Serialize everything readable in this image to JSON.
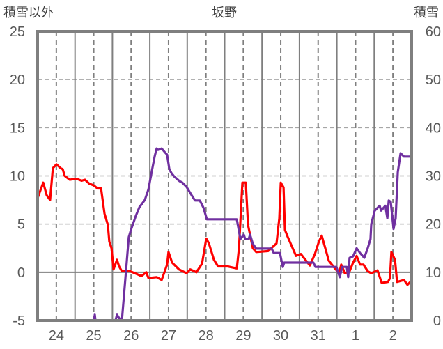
{
  "chart_data": {
    "type": "line",
    "title": "坂野",
    "ylabel_left": "積雪以外",
    "ylabel_right": "積雪",
    "x_unit": "hours from day 24 00:00",
    "xlim": [
      0,
      240
    ],
    "x_tick_labels": [
      "24",
      "25",
      "26",
      "27",
      "28",
      "29",
      "30",
      "31",
      "1",
      "2"
    ],
    "ylim_left": [
      -5,
      25
    ],
    "yticks_left": [
      -5,
      0,
      5,
      10,
      15,
      20,
      25
    ],
    "ylim_right": [
      0,
      60
    ],
    "yticks_right": [
      0,
      10,
      20,
      30,
      40,
      50,
      60
    ],
    "grid": true,
    "series": [
      {
        "name": "積雪以外",
        "axis": "left",
        "color": "#ff0000",
        "x": [
          0,
          3.6,
          5.8,
          8.0,
          9.8,
          12.1,
          14.7,
          16.1,
          17.4,
          20.6,
          25.0,
          28.2,
          30.4,
          33.1,
          36.2,
          38.4,
          40.7,
          42.9,
          45.1,
          46.0,
          47.4,
          48.7,
          50.9,
          52.3,
          54.1,
          59.4,
          63.9,
          66.6,
          69.7,
          71.1,
          76.4,
          79.6,
          83.1,
          84.0,
          86.3,
          90.7,
          95.6,
          97.9,
          101.9,
          105.5,
          108.2,
          109.9,
          113.1,
          115.8,
          122.0,
          127.8,
          129.2,
          131.4,
          133.6,
          135.0,
          138.1,
          140.3,
          147.9,
          153.3,
          155.1,
          156.0,
          157.8,
          158.7,
          160.4,
          165.8,
          168.9,
          174.7,
          177.9,
          180.5,
          182.3,
          184.6,
          186.8,
          191.3,
          193.5,
          194.8,
          197.1,
          200.2,
          202.4,
          204.7,
          206.9,
          209.1,
          211.8,
          214.1,
          218.1,
          220.8,
          224.8,
          226.1,
          227.0,
          229.3,
          230.6,
          235.1,
          237.3,
          239.1
        ],
        "y": [
          7.7,
          9.3,
          8.0,
          7.5,
          10.8,
          11.2,
          10.8,
          10.7,
          10.0,
          9.6,
          9.7,
          9.5,
          9.6,
          9.2,
          9.0,
          8.7,
          8.7,
          6.1,
          4.9,
          3.2,
          2.5,
          0.3,
          1.3,
          0.6,
          0.1,
          0.1,
          -0.2,
          -0.4,
          0,
          -0.6,
          -0.5,
          -0.8,
          0.8,
          2.1,
          1.0,
          0.3,
          -0.1,
          0.3,
          0,
          0.9,
          3.5,
          3.0,
          1.3,
          0.6,
          0.6,
          0.4,
          2.5,
          9.3,
          9.3,
          4.9,
          2.5,
          2.1,
          2.2,
          3.0,
          5.6,
          9.3,
          8.8,
          4.4,
          3.7,
          1.7,
          1.9,
          0.7,
          1.9,
          3.2,
          3.8,
          2.5,
          1.2,
          0.3,
          -0.1,
          0.8,
          -0.1,
          0.1,
          1.0,
          1.7,
          0.8,
          0.8,
          0.1,
          -0.1,
          0.2,
          -1.1,
          -1.0,
          -0.6,
          2.1,
          1.3,
          -1.0,
          -0.8,
          -1.3,
          -1.0
        ]
      },
      {
        "name": "積雪",
        "axis": "right",
        "color": "#7030a0",
        "x": [
          0,
          36.2,
          36.7,
          37.1,
          50.0,
          50.9,
          52.7,
          54.1,
          56.3,
          58.5,
          59.9,
          63.0,
          65.3,
          68.8,
          71.1,
          73.3,
          75.1,
          76.4,
          77.3,
          79.6,
          81.4,
          83.1,
          84.5,
          85.8,
          87.6,
          91.1,
          92.9,
          95.6,
          98.8,
          101.0,
          104.1,
          106.4,
          108.6,
          127.8,
          130.1,
          132.3,
          133.2,
          135.4,
          136.3,
          138.1,
          140.3,
          150.2,
          151.5,
          155.5,
          157.3,
          158.2,
          177.0,
          178.3,
          191.7,
          193.9,
          195.3,
          198.4,
          199.3,
          200.2,
          202.4,
          204.7,
          206.9,
          209.6,
          211.8,
          213.6,
          214.1,
          216.3,
          219.5,
          220.4,
          223.1,
          224.4,
          225.3,
          226.6,
          228.4,
          229.7,
          231.1,
          232.9,
          235.1,
          239.1
        ],
        "y": [
          0,
          0,
          1.2,
          0,
          0,
          1.2,
          0.3,
          0,
          8.7,
          17.3,
          18.8,
          21.7,
          23.5,
          25,
          27.2,
          31,
          34,
          35.7,
          35.4,
          35.7,
          35,
          34.4,
          31.4,
          30.6,
          29.9,
          28.9,
          28.6,
          27.7,
          26,
          24.9,
          24.9,
          23.4,
          21,
          21,
          16.9,
          17.8,
          16.9,
          16.9,
          17.8,
          15.9,
          14.9,
          14.9,
          14,
          14,
          11.1,
          12,
          12,
          11.1,
          11.1,
          9,
          11.1,
          11.1,
          9,
          13,
          13.3,
          15,
          14,
          13,
          15,
          16.9,
          20,
          22.8,
          23.8,
          22.8,
          23.8,
          21.2,
          24.9,
          24.6,
          19,
          21.2,
          30.8,
          34.7,
          34,
          34
        ]
      }
    ]
  }
}
